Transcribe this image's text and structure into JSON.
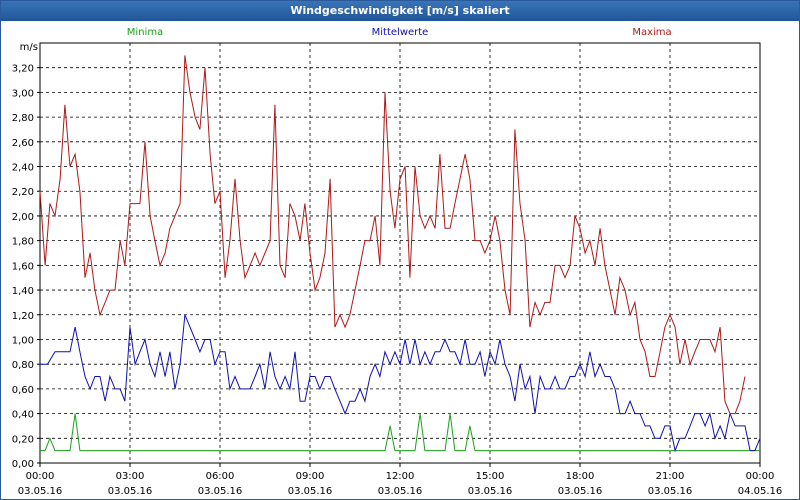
{
  "window": {
    "title": "Windgeschwindigkeit [m/s] skaliert"
  },
  "chart_data": {
    "type": "line",
    "title": "Windgeschwindigkeit [m/s] skaliert",
    "ylabel": "m/s",
    "xlabel": "",
    "ylim": [
      0,
      3.4
    ],
    "xlim": [
      0,
      24
    ],
    "grid": true,
    "y_ticks": [
      "0,00",
      "0,20",
      "0,40",
      "0,60",
      "0,80",
      "1,00",
      "1,20",
      "1,40",
      "1,60",
      "1,80",
      "2,00",
      "2,20",
      "2,40",
      "2,60",
      "2,80",
      "3,00",
      "3,20"
    ],
    "x_ticks": [
      {
        "time": "00:00",
        "date": "03.05.16"
      },
      {
        "time": "03:00",
        "date": "03.05.16"
      },
      {
        "time": "06:00",
        "date": "03.05.16"
      },
      {
        "time": "09:00",
        "date": "03.05.16"
      },
      {
        "time": "12:00",
        "date": "03.05.16"
      },
      {
        "time": "15:00",
        "date": "03.05.16"
      },
      {
        "time": "18:00",
        "date": "03.05.16"
      },
      {
        "time": "21:00",
        "date": "03.05.16"
      },
      {
        "time": "00:00",
        "date": "04.05.16"
      }
    ],
    "series": [
      {
        "name": "Minima",
        "color": "#1aa01a",
        "points": [
          [
            0.0,
            0.1
          ],
          [
            0.17,
            0.1
          ],
          [
            0.33,
            0.2
          ],
          [
            0.5,
            0.1
          ],
          [
            1.0,
            0.1
          ],
          [
            1.17,
            0.4
          ],
          [
            1.33,
            0.1
          ],
          [
            11.5,
            0.1
          ],
          [
            11.67,
            0.3
          ],
          [
            11.83,
            0.1
          ],
          [
            12.5,
            0.1
          ],
          [
            12.67,
            0.4
          ],
          [
            12.83,
            0.1
          ],
          [
            13.5,
            0.1
          ],
          [
            13.67,
            0.4
          ],
          [
            13.83,
            0.1
          ],
          [
            14.17,
            0.1
          ],
          [
            14.33,
            0.3
          ],
          [
            14.5,
            0.1
          ],
          [
            24.0,
            0.1
          ]
        ]
      },
      {
        "name": "Mittelwerte",
        "color": "#1010b0",
        "points": [
          [
            0.0,
            0.8
          ],
          [
            0.25,
            0.8
          ],
          [
            0.5,
            0.9
          ],
          [
            1.0,
            0.9
          ],
          [
            1.17,
            1.1
          ],
          [
            1.33,
            0.9
          ],
          [
            1.5,
            0.7
          ],
          [
            1.67,
            0.6
          ],
          [
            1.83,
            0.7
          ],
          [
            2.0,
            0.7
          ],
          [
            2.17,
            0.5
          ],
          [
            2.33,
            0.7
          ],
          [
            2.5,
            0.6
          ],
          [
            2.67,
            0.6
          ],
          [
            2.83,
            0.5
          ],
          [
            3.0,
            1.1
          ],
          [
            3.17,
            0.8
          ],
          [
            3.33,
            0.9
          ],
          [
            3.5,
            1.0
          ],
          [
            3.67,
            0.8
          ],
          [
            3.83,
            0.7
          ],
          [
            4.0,
            0.9
          ],
          [
            4.17,
            0.7
          ],
          [
            4.33,
            0.9
          ],
          [
            4.5,
            0.6
          ],
          [
            4.67,
            0.8
          ],
          [
            4.83,
            1.2
          ],
          [
            5.0,
            1.1
          ],
          [
            5.17,
            1.0
          ],
          [
            5.33,
            0.9
          ],
          [
            5.5,
            1.0
          ],
          [
            5.67,
            1.0
          ],
          [
            5.83,
            0.8
          ],
          [
            6.0,
            0.9
          ],
          [
            6.17,
            0.9
          ],
          [
            6.33,
            0.6
          ],
          [
            6.5,
            0.7
          ],
          [
            6.67,
            0.6
          ],
          [
            6.83,
            0.6
          ],
          [
            7.0,
            0.6
          ],
          [
            7.17,
            0.7
          ],
          [
            7.33,
            0.8
          ],
          [
            7.5,
            0.6
          ],
          [
            7.67,
            0.9
          ],
          [
            7.83,
            0.7
          ],
          [
            8.0,
            0.6
          ],
          [
            8.17,
            0.7
          ],
          [
            8.33,
            0.6
          ],
          [
            8.5,
            0.9
          ],
          [
            8.67,
            0.5
          ],
          [
            8.83,
            0.5
          ],
          [
            9.0,
            0.7
          ],
          [
            9.17,
            0.7
          ],
          [
            9.33,
            0.6
          ],
          [
            9.5,
            0.7
          ],
          [
            9.67,
            0.7
          ],
          [
            9.83,
            0.6
          ],
          [
            10.0,
            0.5
          ],
          [
            10.17,
            0.4
          ],
          [
            10.33,
            0.5
          ],
          [
            10.5,
            0.5
          ],
          [
            10.67,
            0.6
          ],
          [
            10.83,
            0.5
          ],
          [
            11.0,
            0.7
          ],
          [
            11.17,
            0.8
          ],
          [
            11.33,
            0.7
          ],
          [
            11.5,
            0.9
          ],
          [
            11.67,
            0.8
          ],
          [
            11.83,
            0.9
          ],
          [
            12.0,
            0.8
          ],
          [
            12.17,
            1.0
          ],
          [
            12.33,
            0.8
          ],
          [
            12.5,
            1.0
          ],
          [
            12.67,
            0.8
          ],
          [
            12.83,
            0.9
          ],
          [
            13.0,
            0.8
          ],
          [
            13.17,
            0.9
          ],
          [
            13.33,
            0.9
          ],
          [
            13.5,
            1.0
          ],
          [
            13.67,
            0.9
          ],
          [
            13.83,
            0.9
          ],
          [
            14.0,
            0.8
          ],
          [
            14.17,
            1.0
          ],
          [
            14.33,
            0.8
          ],
          [
            14.5,
            0.8
          ],
          [
            14.67,
            0.9
          ],
          [
            14.83,
            0.7
          ],
          [
            15.0,
            0.9
          ],
          [
            15.17,
            0.8
          ],
          [
            15.33,
            1.0
          ],
          [
            15.5,
            0.8
          ],
          [
            15.67,
            0.7
          ],
          [
            15.83,
            0.5
          ],
          [
            16.0,
            0.8
          ],
          [
            16.17,
            0.6
          ],
          [
            16.33,
            0.7
          ],
          [
            16.5,
            0.4
          ],
          [
            16.67,
            0.7
          ],
          [
            16.83,
            0.6
          ],
          [
            17.0,
            0.6
          ],
          [
            17.17,
            0.7
          ],
          [
            17.33,
            0.6
          ],
          [
            17.5,
            0.6
          ],
          [
            17.67,
            0.7
          ],
          [
            17.83,
            0.7
          ],
          [
            18.0,
            0.8
          ],
          [
            18.17,
            0.7
          ],
          [
            18.33,
            0.9
          ],
          [
            18.5,
            0.7
          ],
          [
            18.67,
            0.8
          ],
          [
            18.83,
            0.7
          ],
          [
            19.0,
            0.7
          ],
          [
            19.17,
            0.6
          ],
          [
            19.33,
            0.4
          ],
          [
            19.5,
            0.4
          ],
          [
            19.67,
            0.5
          ],
          [
            19.83,
            0.4
          ],
          [
            20.0,
            0.4
          ],
          [
            20.17,
            0.3
          ],
          [
            20.33,
            0.3
          ],
          [
            20.5,
            0.2
          ],
          [
            20.67,
            0.2
          ],
          [
            20.83,
            0.3
          ],
          [
            21.0,
            0.3
          ],
          [
            21.17,
            0.1
          ],
          [
            21.33,
            0.2
          ],
          [
            21.5,
            0.2
          ],
          [
            21.67,
            0.3
          ],
          [
            21.83,
            0.4
          ],
          [
            22.0,
            0.4
          ],
          [
            22.17,
            0.3
          ],
          [
            22.33,
            0.4
          ],
          [
            22.5,
            0.2
          ],
          [
            22.67,
            0.3
          ],
          [
            22.83,
            0.2
          ],
          [
            23.0,
            0.4
          ],
          [
            23.17,
            0.3
          ],
          [
            23.33,
            0.3
          ],
          [
            23.5,
            0.3
          ],
          [
            23.67,
            0.1
          ],
          [
            23.83,
            0.1
          ],
          [
            24.0,
            0.2
          ]
        ]
      },
      {
        "name": "Maxima",
        "color": "#b01818",
        "points": [
          [
            0.0,
            2.2
          ],
          [
            0.17,
            1.6
          ],
          [
            0.33,
            2.1
          ],
          [
            0.5,
            2.0
          ],
          [
            0.67,
            2.3
          ],
          [
            0.83,
            2.9
          ],
          [
            1.0,
            2.4
          ],
          [
            1.17,
            2.5
          ],
          [
            1.33,
            2.2
          ],
          [
            1.5,
            1.5
          ],
          [
            1.67,
            1.7
          ],
          [
            1.83,
            1.4
          ],
          [
            2.0,
            1.2
          ],
          [
            2.17,
            1.3
          ],
          [
            2.33,
            1.4
          ],
          [
            2.5,
            1.4
          ],
          [
            2.67,
            1.8
          ],
          [
            2.83,
            1.6
          ],
          [
            3.0,
            2.1
          ],
          [
            3.17,
            2.1
          ],
          [
            3.33,
            2.1
          ],
          [
            3.5,
            2.6
          ],
          [
            3.67,
            2.0
          ],
          [
            3.83,
            1.8
          ],
          [
            4.0,
            1.6
          ],
          [
            4.17,
            1.7
          ],
          [
            4.33,
            1.9
          ],
          [
            4.5,
            2.0
          ],
          [
            4.67,
            2.1
          ],
          [
            4.83,
            3.3
          ],
          [
            5.0,
            3.0
          ],
          [
            5.17,
            2.8
          ],
          [
            5.33,
            2.7
          ],
          [
            5.5,
            3.2
          ],
          [
            5.67,
            2.5
          ],
          [
            5.83,
            2.1
          ],
          [
            6.0,
            2.2
          ],
          [
            6.17,
            1.5
          ],
          [
            6.33,
            1.8
          ],
          [
            6.5,
            2.3
          ],
          [
            6.67,
            1.8
          ],
          [
            6.83,
            1.5
          ],
          [
            7.0,
            1.6
          ],
          [
            7.17,
            1.7
          ],
          [
            7.33,
            1.6
          ],
          [
            7.5,
            1.7
          ],
          [
            7.67,
            1.8
          ],
          [
            7.83,
            2.9
          ],
          [
            8.0,
            1.6
          ],
          [
            8.17,
            1.5
          ],
          [
            8.33,
            2.1
          ],
          [
            8.5,
            2.0
          ],
          [
            8.67,
            1.8
          ],
          [
            8.83,
            2.1
          ],
          [
            9.0,
            1.7
          ],
          [
            9.17,
            1.4
          ],
          [
            9.33,
            1.5
          ],
          [
            9.5,
            1.7
          ],
          [
            9.67,
            2.3
          ],
          [
            9.83,
            1.1
          ],
          [
            10.0,
            1.2
          ],
          [
            10.17,
            1.1
          ],
          [
            10.33,
            1.2
          ],
          [
            10.5,
            1.4
          ],
          [
            10.67,
            1.6
          ],
          [
            10.83,
            1.8
          ],
          [
            11.0,
            1.8
          ],
          [
            11.17,
            2.0
          ],
          [
            11.33,
            1.6
          ],
          [
            11.5,
            3.0
          ],
          [
            11.67,
            2.2
          ],
          [
            11.83,
            1.9
          ],
          [
            12.0,
            2.3
          ],
          [
            12.17,
            2.4
          ],
          [
            12.33,
            1.5
          ],
          [
            12.5,
            2.4
          ],
          [
            12.67,
            2.0
          ],
          [
            12.83,
            1.9
          ],
          [
            13.0,
            2.0
          ],
          [
            13.17,
            1.9
          ],
          [
            13.33,
            2.5
          ],
          [
            13.5,
            1.9
          ],
          [
            13.67,
            1.9
          ],
          [
            13.83,
            2.1
          ],
          [
            14.0,
            2.3
          ],
          [
            14.17,
            2.5
          ],
          [
            14.33,
            2.3
          ],
          [
            14.5,
            1.8
          ],
          [
            14.67,
            1.8
          ],
          [
            14.83,
            1.7
          ],
          [
            15.0,
            1.8
          ],
          [
            15.17,
            2.0
          ],
          [
            15.33,
            1.8
          ],
          [
            15.5,
            1.4
          ],
          [
            15.67,
            1.2
          ],
          [
            15.83,
            2.7
          ],
          [
            16.0,
            2.1
          ],
          [
            16.17,
            1.8
          ],
          [
            16.33,
            1.1
          ],
          [
            16.5,
            1.3
          ],
          [
            16.67,
            1.2
          ],
          [
            16.83,
            1.3
          ],
          [
            17.0,
            1.3
          ],
          [
            17.17,
            1.6
          ],
          [
            17.33,
            1.6
          ],
          [
            17.5,
            1.5
          ],
          [
            17.67,
            1.6
          ],
          [
            17.83,
            2.0
          ],
          [
            18.0,
            1.9
          ],
          [
            18.17,
            1.7
          ],
          [
            18.33,
            1.8
          ],
          [
            18.5,
            1.6
          ],
          [
            18.67,
            1.9
          ],
          [
            18.83,
            1.6
          ],
          [
            19.0,
            1.4
          ],
          [
            19.17,
            1.2
          ],
          [
            19.33,
            1.5
          ],
          [
            19.5,
            1.4
          ],
          [
            19.67,
            1.2
          ],
          [
            19.83,
            1.3
          ],
          [
            20.0,
            1.0
          ],
          [
            20.17,
            0.9
          ],
          [
            20.33,
            0.7
          ],
          [
            20.5,
            0.7
          ],
          [
            20.67,
            0.9
          ],
          [
            20.83,
            1.1
          ],
          [
            21.0,
            1.2
          ],
          [
            21.17,
            1.1
          ],
          [
            21.33,
            0.8
          ],
          [
            21.5,
            1.0
          ],
          [
            21.67,
            0.8
          ],
          [
            21.83,
            0.9
          ],
          [
            22.0,
            1.0
          ],
          [
            22.17,
            1.0
          ],
          [
            22.33,
            1.0
          ],
          [
            22.5,
            0.9
          ],
          [
            22.67,
            1.1
          ],
          [
            22.83,
            0.5
          ],
          [
            23.0,
            0.4
          ],
          [
            23.17,
            0.4
          ],
          [
            23.33,
            0.5
          ],
          [
            23.5,
            0.7
          ]
        ]
      }
    ]
  }
}
